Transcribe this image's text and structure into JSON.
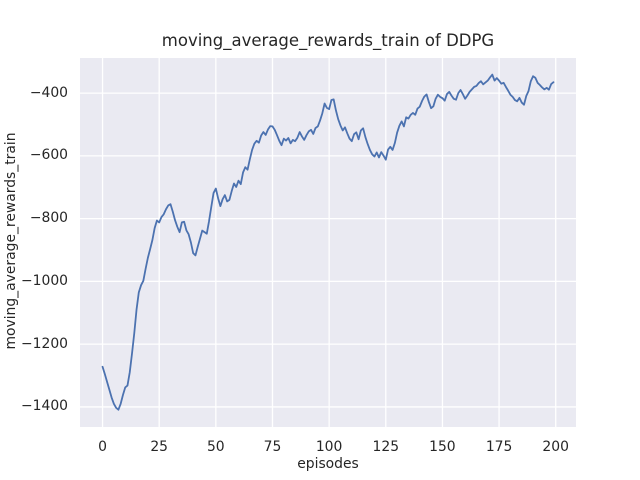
{
  "figure": {
    "title": "moving_average_rewards_train of DDPG",
    "xlabel": "episodes",
    "ylabel": "moving_average_rewards_train"
  },
  "colors": {
    "line": "#4c72b0",
    "plot_background": "#eaeaf2",
    "grid": "#ffffff",
    "text": "#262626",
    "figure_background": "#ffffff"
  },
  "chart_data": {
    "type": "line",
    "title": "moving_average_rewards_train of DDPG",
    "xlabel": "episodes",
    "ylabel": "moving_average_rewards_train",
    "grid": true,
    "legend": false,
    "xlim": [
      -9.95,
      208.95
    ],
    "ylim": [
      -1464,
      -288
    ],
    "xticks": [
      0,
      25,
      50,
      75,
      100,
      125,
      150,
      175,
      200
    ],
    "yticks": [
      -400,
      -600,
      -800,
      -1000,
      -1200,
      -1400
    ],
    "xtick_labels": [
      "0",
      "25",
      "50",
      "75",
      "100",
      "125",
      "150",
      "175",
      "200"
    ],
    "ytick_labels": [
      "−400",
      "−600",
      "−800",
      "−1000",
      "−1200",
      "−1400"
    ],
    "x": [
      0,
      1,
      2,
      3,
      4,
      5,
      6,
      7,
      8,
      9,
      10,
      11,
      12,
      13,
      14,
      15,
      16,
      17,
      18,
      19,
      20,
      21,
      22,
      23,
      24,
      25,
      26,
      27,
      28,
      29,
      30,
      31,
      32,
      33,
      34,
      35,
      36,
      37,
      38,
      39,
      40,
      41,
      42,
      43,
      44,
      45,
      46,
      47,
      48,
      49,
      50,
      51,
      52,
      53,
      54,
      55,
      56,
      57,
      58,
      59,
      60,
      61,
      62,
      63,
      64,
      65,
      66,
      67,
      68,
      69,
      70,
      71,
      72,
      73,
      74,
      75,
      76,
      77,
      78,
      79,
      80,
      81,
      82,
      83,
      84,
      85,
      86,
      87,
      88,
      89,
      90,
      91,
      92,
      93,
      94,
      95,
      96,
      97,
      98,
      99,
      100,
      101,
      102,
      103,
      104,
      105,
      106,
      107,
      108,
      109,
      110,
      111,
      112,
      113,
      114,
      115,
      116,
      117,
      118,
      119,
      120,
      121,
      122,
      123,
      124,
      125,
      126,
      127,
      128,
      129,
      130,
      131,
      132,
      133,
      134,
      135,
      136,
      137,
      138,
      139,
      140,
      141,
      142,
      143,
      144,
      145,
      146,
      147,
      148,
      149,
      150,
      151,
      152,
      153,
      154,
      155,
      156,
      157,
      158,
      159,
      160,
      161,
      162,
      163,
      164,
      165,
      166,
      167,
      168,
      169,
      170,
      171,
      172,
      173,
      174,
      175,
      176,
      177,
      178,
      179,
      180,
      181,
      182,
      183,
      184,
      185,
      186,
      187,
      188,
      189,
      190,
      191,
      192,
      193,
      194,
      195,
      196,
      197,
      198,
      199
    ],
    "series": [
      {
        "name": "moving_average_rewards_train",
        "color": "#4c72b0",
        "values": [
          -1272,
          -1295,
          -1320,
          -1345,
          -1370,
          -1390,
          -1403,
          -1409,
          -1390,
          -1362,
          -1338,
          -1332,
          -1290,
          -1230,
          -1165,
          -1090,
          -1035,
          -1012,
          -998,
          -960,
          -925,
          -897,
          -868,
          -830,
          -806,
          -812,
          -795,
          -786,
          -770,
          -758,
          -754,
          -778,
          -805,
          -826,
          -843,
          -812,
          -810,
          -837,
          -850,
          -876,
          -910,
          -917,
          -890,
          -864,
          -838,
          -843,
          -848,
          -808,
          -762,
          -718,
          -704,
          -735,
          -760,
          -738,
          -725,
          -745,
          -740,
          -712,
          -688,
          -699,
          -679,
          -690,
          -653,
          -636,
          -644,
          -611,
          -581,
          -561,
          -552,
          -558,
          -535,
          -524,
          -533,
          -516,
          -505,
          -506,
          -517,
          -534,
          -552,
          -566,
          -545,
          -551,
          -543,
          -560,
          -549,
          -553,
          -542,
          -524,
          -538,
          -549,
          -534,
          -522,
          -517,
          -530,
          -511,
          -506,
          -487,
          -464,
          -433,
          -447,
          -451,
          -422,
          -420,
          -455,
          -483,
          -503,
          -519,
          -509,
          -528,
          -545,
          -553,
          -531,
          -525,
          -547,
          -519,
          -512,
          -540,
          -562,
          -581,
          -595,
          -602,
          -589,
          -605,
          -588,
          -599,
          -612,
          -580,
          -571,
          -581,
          -559,
          -526,
          -504,
          -490,
          -506,
          -477,
          -481,
          -469,
          -463,
          -469,
          -449,
          -443,
          -425,
          -411,
          -404,
          -428,
          -448,
          -442,
          -418,
          -405,
          -412,
          -416,
          -424,
          -403,
          -396,
          -408,
          -418,
          -421,
          -400,
          -390,
          -403,
          -418,
          -408,
          -396,
          -388,
          -380,
          -377,
          -368,
          -362,
          -372,
          -366,
          -360,
          -350,
          -341,
          -360,
          -352,
          -360,
          -370,
          -367,
          -380,
          -392,
          -405,
          -412,
          -422,
          -426,
          -415,
          -430,
          -437,
          -409,
          -393,
          -362,
          -346,
          -351,
          -367,
          -374,
          -382,
          -388,
          -383,
          -389,
          -371,
          -365
        ]
      }
    ]
  }
}
